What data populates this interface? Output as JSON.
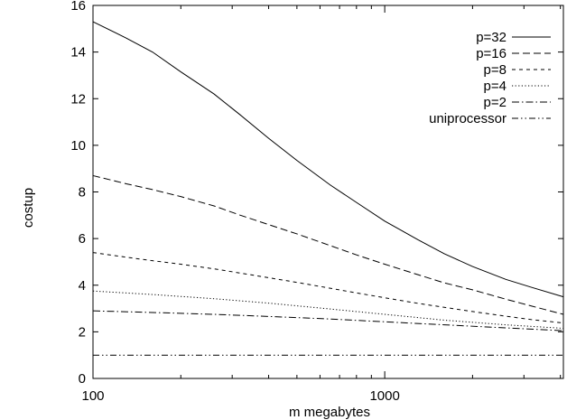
{
  "chart_data": {
    "type": "line",
    "title": "",
    "xlabel": "m megabytes",
    "ylabel": "costup",
    "xscale": "log",
    "xlim": [
      100,
      4096
    ],
    "ylim": [
      0,
      16
    ],
    "xticks": [
      100,
      1000
    ],
    "xtick_labels": [
      "100",
      "1000"
    ],
    "yticks": [
      0,
      2,
      4,
      6,
      8,
      10,
      12,
      14,
      16
    ],
    "ytick_labels": [
      "0",
      "2",
      "4",
      "6",
      "8",
      "10",
      "12",
      "14",
      "16"
    ],
    "grid": false,
    "legend_position": "top-right",
    "series": [
      {
        "name": "p=32",
        "dash": "solid",
        "x": [
          100,
          130,
          160,
          200,
          260,
          320,
          400,
          500,
          650,
          800,
          1000,
          1300,
          1600,
          2000,
          2600,
          3200,
          4096
        ],
        "y": [
          15.3,
          14.6,
          14.0,
          13.15,
          12.2,
          11.3,
          10.3,
          9.35,
          8.3,
          7.55,
          6.75,
          5.95,
          5.35,
          4.8,
          4.25,
          3.9,
          3.5
        ]
      },
      {
        "name": "p=16",
        "dash": "dashed",
        "x": [
          100,
          130,
          160,
          200,
          260,
          320,
          400,
          500,
          650,
          800,
          1000,
          1300,
          1600,
          2000,
          2600,
          3200,
          4096
        ],
        "y": [
          8.7,
          8.35,
          8.1,
          7.8,
          7.4,
          7.0,
          6.6,
          6.2,
          5.7,
          5.3,
          4.9,
          4.45,
          4.1,
          3.8,
          3.4,
          3.1,
          2.75
        ]
      },
      {
        "name": "p=8",
        "dash": "short-dashed",
        "x": [
          100,
          130,
          160,
          200,
          260,
          320,
          400,
          500,
          650,
          800,
          1000,
          1300,
          1600,
          2000,
          2600,
          3200,
          4096
        ],
        "y": [
          5.4,
          5.2,
          5.05,
          4.9,
          4.7,
          4.52,
          4.32,
          4.12,
          3.87,
          3.67,
          3.46,
          3.22,
          3.05,
          2.87,
          2.67,
          2.52,
          2.38
        ]
      },
      {
        "name": "p=4",
        "dash": "dotted",
        "x": [
          100,
          160,
          260,
          400,
          650,
          1000,
          1600,
          2600,
          4096
        ],
        "y": [
          3.75,
          3.6,
          3.42,
          3.23,
          2.98,
          2.75,
          2.5,
          2.3,
          2.15
        ]
      },
      {
        "name": "p=2",
        "dash": "dash-dot",
        "x": [
          100,
          160,
          260,
          400,
          650,
          1000,
          1600,
          2600,
          4096
        ],
        "y": [
          2.9,
          2.83,
          2.75,
          2.66,
          2.55,
          2.43,
          2.3,
          2.17,
          2.05
        ]
      },
      {
        "name": "uniprocessor",
        "dash": "dash-dot-dot",
        "x": [
          100,
          4096
        ],
        "y": [
          1.0,
          1.0
        ]
      }
    ]
  }
}
